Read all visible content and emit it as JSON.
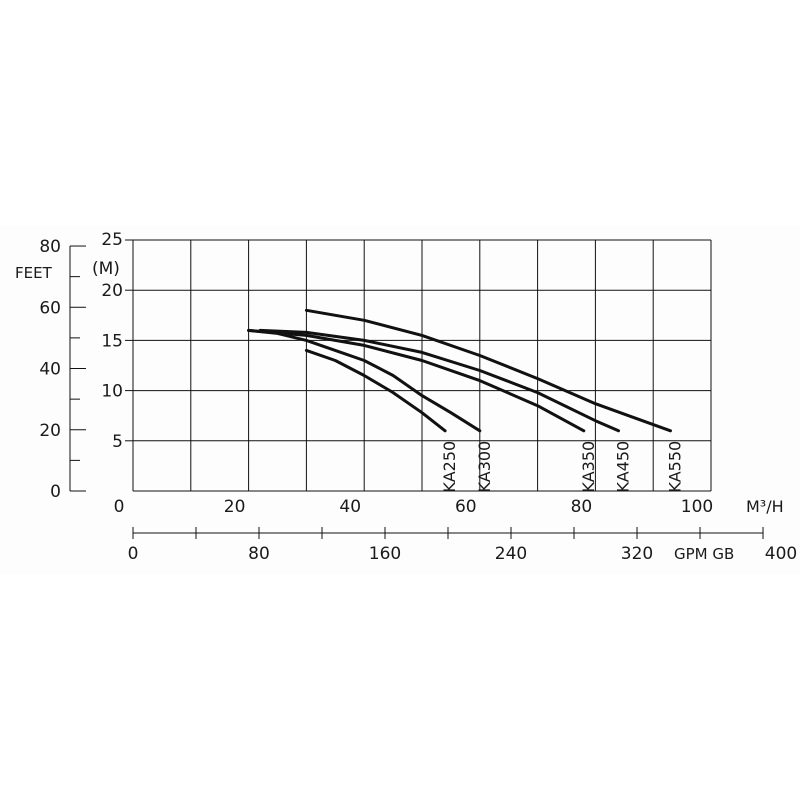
{
  "chart_data": {
    "type": "line",
    "title": "",
    "background": "#fdfdfd",
    "line_color": "#111111",
    "grid": true,
    "x_unit": "M³/H",
    "x_ticks": [
      0,
      20,
      40,
      60,
      80,
      100
    ],
    "xlim": [
      0,
      100
    ],
    "y_unit": "(M)",
    "y_ticks": [
      5,
      10,
      15,
      20,
      25
    ],
    "ylim": [
      0,
      25
    ],
    "feet_axis": {
      "label": "FEET",
      "ticks": [
        0,
        20,
        40,
        60,
        80
      ],
      "values_m": [
        0,
        6.1,
        12.2,
        18.3,
        24.4
      ]
    },
    "gpm_axis": {
      "unit": "GPM GB",
      "ticks": [
        0,
        80,
        160,
        240,
        320,
        400
      ],
      "values_m3h": [
        0,
        21.8,
        43.6,
        65.4,
        87.2,
        109.0
      ]
    },
    "series": [
      {
        "name": "KA250",
        "x": [
          30,
          35,
          40,
          45,
          50,
          54
        ],
        "y": [
          14,
          13,
          11.5,
          9.8,
          7.8,
          6
        ]
      },
      {
        "name": "KA300",
        "x": [
          20,
          25,
          30,
          35,
          40,
          45,
          50,
          55,
          60
        ],
        "y": [
          16,
          15.7,
          15,
          14,
          13,
          11.5,
          9.5,
          7.8,
          6
        ]
      },
      {
        "name": "KA350",
        "x": [
          20,
          30,
          40,
          50,
          60,
          70,
          78
        ],
        "y": [
          16,
          15.5,
          14.5,
          13,
          11,
          8.5,
          6
        ]
      },
      {
        "name": "KA450",
        "x": [
          22,
          30,
          40,
          50,
          60,
          70,
          80,
          84
        ],
        "y": [
          16,
          15.8,
          15,
          13.8,
          12,
          9.8,
          7,
          6
        ]
      },
      {
        "name": "KA550",
        "x": [
          30,
          40,
          50,
          60,
          70,
          80,
          93
        ],
        "y": [
          18,
          17,
          15.5,
          13.5,
          11.2,
          8.7,
          6
        ]
      }
    ]
  }
}
